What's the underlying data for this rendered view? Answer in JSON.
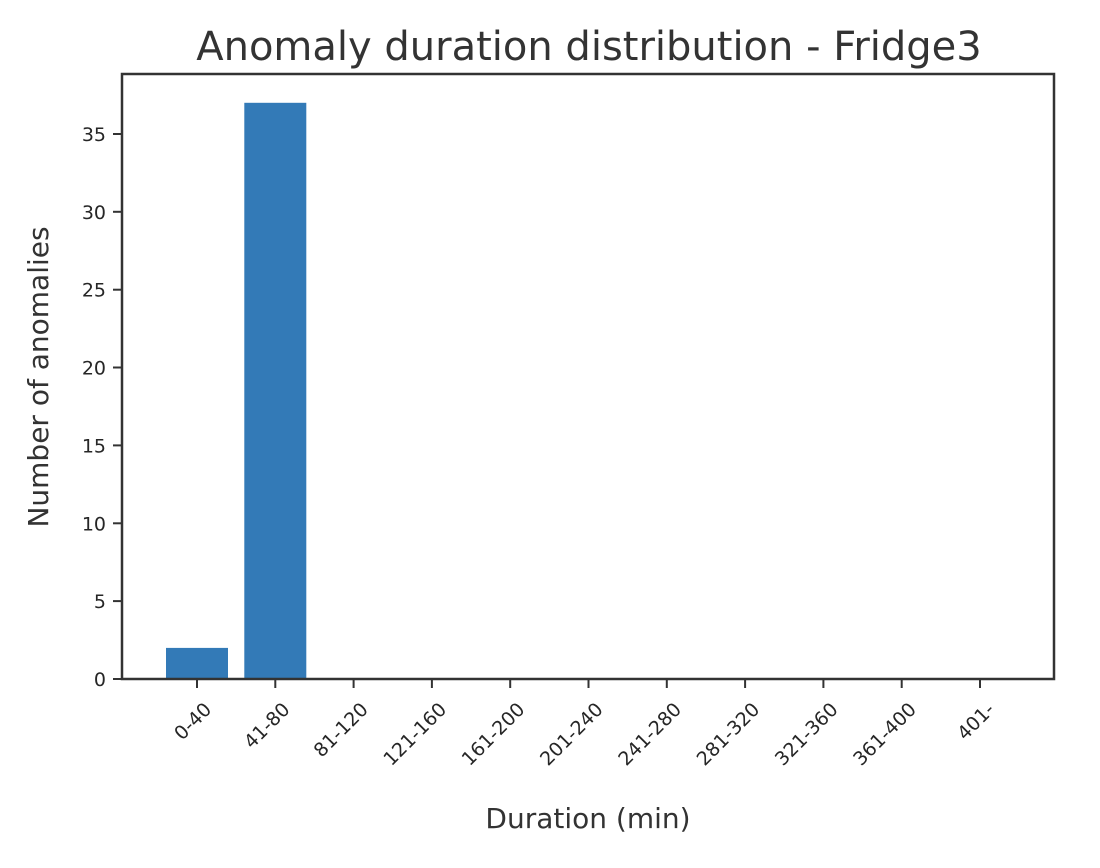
{
  "chart_data": {
    "type": "bar",
    "title": "Anomaly duration distribution - Fridge3",
    "xlabel": "Duration (min)",
    "ylabel": "Number of anomalies",
    "categories": [
      "0-40",
      "41-80",
      "81-120",
      "121-160",
      "161-200",
      "201-240",
      "241-280",
      "281-320",
      "321-360",
      "361-400",
      "401-"
    ],
    "values": [
      2,
      37,
      0,
      0,
      0,
      0,
      0,
      0,
      0,
      0,
      0
    ],
    "ylim": [
      0,
      38.85
    ],
    "yticks": [
      0,
      5,
      10,
      15,
      20,
      25,
      30,
      35
    ],
    "bar_color": "#337ab7",
    "grid": false,
    "legend": "none"
  }
}
